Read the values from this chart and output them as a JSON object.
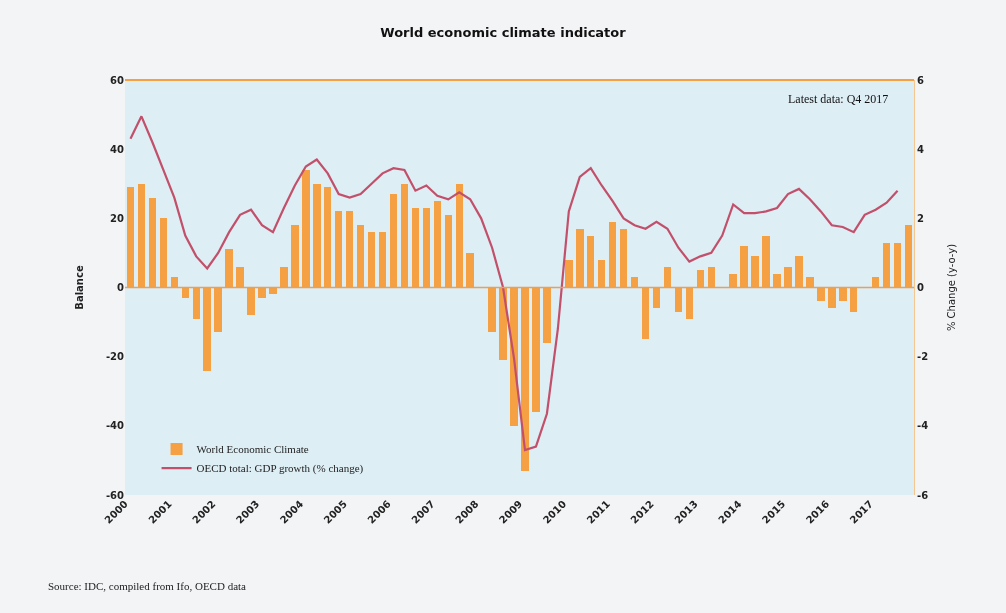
{
  "chart_data": {
    "type": "bar",
    "title": "World economic climate indicator",
    "ylabel": "Balance",
    "y2label": "% Change (y-o-y)",
    "x": [
      2000.125,
      2000.375,
      2000.625,
      2000.875,
      2001.125,
      2001.375,
      2001.625,
      2001.875,
      2002.125,
      2002.375,
      2002.625,
      2002.875,
      2003.125,
      2003.375,
      2003.625,
      2003.875,
      2004.125,
      2004.375,
      2004.625,
      2004.875,
      2005.125,
      2005.375,
      2005.625,
      2005.875,
      2006.125,
      2006.375,
      2006.625,
      2006.875,
      2007.125,
      2007.375,
      2007.625,
      2007.875,
      2008.125,
      2008.375,
      2008.625,
      2008.875,
      2009.125,
      2009.375,
      2009.625,
      2009.875,
      2010.125,
      2010.375,
      2010.625,
      2010.875,
      2011.125,
      2011.375,
      2011.625,
      2011.875,
      2012.125,
      2012.375,
      2012.625,
      2012.875,
      2013.125,
      2013.375,
      2013.625,
      2013.875,
      2014.125,
      2014.375,
      2014.625,
      2014.875,
      2015.125,
      2015.375,
      2015.625,
      2015.875,
      2016.125,
      2016.375,
      2016.625,
      2016.875,
      2017.125,
      2017.375,
      2017.625,
      2017.875
    ],
    "series": [
      {
        "name": "World Economic Climate",
        "color": "#f5a043",
        "values": [
          29,
          30,
          26,
          20,
          3,
          -3,
          -9,
          -24,
          -13,
          11,
          6,
          -8,
          -3,
          -2,
          6,
          18,
          34,
          30,
          29,
          22,
          22,
          18,
          16,
          16,
          27,
          30,
          23,
          23,
          25,
          21,
          30,
          10,
          0,
          -13,
          -21,
          -40,
          -53,
          -36,
          -16,
          0,
          8,
          17,
          15,
          8,
          19,
          17,
          3,
          -15,
          -6,
          6,
          -7,
          -9,
          5,
          6,
          0,
          4,
          12,
          9,
          15,
          4,
          6,
          9,
          3,
          -4,
          -6,
          -4,
          -7,
          0,
          3,
          13,
          13,
          18
        ]
      },
      {
        "name": "OECD total: GDP growth (% change)",
        "type": "line",
        "axis": "y2",
        "color": "#c2506b",
        "values": [
          4.3,
          4.95,
          4.2,
          3.4,
          2.6,
          1.5,
          0.9,
          0.55,
          1.0,
          1.6,
          2.1,
          2.25,
          1.8,
          1.6,
          2.3,
          2.95,
          3.5,
          3.7,
          3.3,
          2.7,
          2.6,
          2.7,
          3.0,
          3.3,
          3.45,
          3.4,
          2.8,
          2.95,
          2.65,
          2.55,
          2.75,
          2.55,
          2.0,
          1.15,
          0.0,
          -2.05,
          -4.7,
          -4.6,
          -3.65,
          -1.2,
          2.2,
          3.2,
          3.45,
          2.95,
          2.5,
          2.0,
          1.8,
          1.7,
          1.9,
          1.7,
          1.15,
          0.75,
          0.9,
          1.0,
          1.5,
          2.4,
          2.15,
          2.15,
          2.2,
          2.3,
          2.7,
          2.85,
          2.55,
          2.2,
          1.8,
          1.75,
          1.6,
          2.1,
          2.25,
          2.45,
          2.8,
          null
        ]
      }
    ],
    "xlim": [
      2000,
      2018
    ],
    "xticks": [
      2000,
      2001,
      2002,
      2003,
      2004,
      2005,
      2006,
      2007,
      2008,
      2009,
      2010,
      2011,
      2012,
      2013,
      2014,
      2015,
      2016,
      2017
    ],
    "ylim": [
      -60,
      60
    ],
    "yticks": [
      -60,
      -40,
      -20,
      0,
      20,
      40,
      60
    ],
    "y2lim": [
      -6,
      6
    ],
    "y2ticks": [
      -6,
      -4,
      -2,
      0,
      2,
      4,
      6
    ],
    "ref_lines": [
      {
        "axis": "y",
        "value": 0,
        "color": "#e8a060"
      }
    ],
    "grid": false,
    "legend": "bottom left",
    "line_style": "solid",
    "marker": "none",
    "annotations": [
      "Latest data: Q4 2017",
      "Source: IDC, compiled from Ifo, OECD data"
    ]
  }
}
